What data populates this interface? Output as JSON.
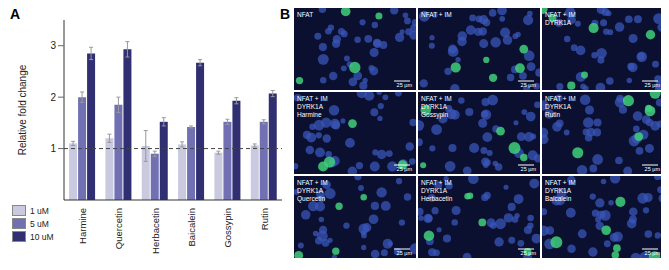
{
  "panel_labels": [
    "A",
    "B"
  ],
  "chart_data": {
    "type": "bar",
    "y_label": "Relative fold change",
    "categories": [
      "Harmine",
      "Quercetin",
      "Herbacetin",
      "Baicalein",
      "Gossypin",
      "Rutin"
    ],
    "series": [
      {
        "name": "1 uM",
        "color": "#c9c9e0",
        "values": [
          1.1,
          1.2,
          1.05,
          1.08,
          0.92,
          1.06
        ],
        "errors": [
          0.04,
          0.08,
          0.3,
          0.05,
          0.03,
          0.03
        ]
      },
      {
        "name": "5 uM",
        "color": "#7070b2",
        "values": [
          2.0,
          1.85,
          0.9,
          1.42,
          1.52,
          1.52
        ],
        "errors": [
          0.1,
          0.15,
          0.05,
          0.02,
          0.05,
          0.04
        ]
      },
      {
        "name": "10 uM",
        "color": "#2f2f72",
        "values": [
          2.85,
          2.93,
          1.52,
          2.67,
          1.93,
          2.07
        ],
        "errors": [
          0.12,
          0.15,
          0.08,
          0.06,
          0.06,
          0.06
        ]
      }
    ],
    "ylim": [
      0,
      3.5
    ],
    "yticks": [
      1,
      2,
      3
    ],
    "reference_line": 1,
    "grid": false,
    "legend": "lower left"
  },
  "images": {
    "scale_bar": "25 µm",
    "panels": [
      {
        "label": [
          "NFAT"
        ]
      },
      {
        "label": [
          "NFAT + IM"
        ]
      },
      {
        "label": [
          "NFAT + IM",
          "DYRK1A"
        ]
      },
      {
        "label": [
          "NFAT + IM",
          "DYRK1A",
          "Harmine"
        ]
      },
      {
        "label": [
          "NFAT + IM",
          "DYRK1A",
          "Gossypin"
        ]
      },
      {
        "label": [
          "NFAT + IM",
          "DYRK1A",
          "Rutin"
        ]
      },
      {
        "label": [
          "NFAT + IM",
          "DYRK1A",
          "Quercetin"
        ]
      },
      {
        "label": [
          "NFAT + IM",
          "DYRK1A",
          "Herbacetin"
        ]
      },
      {
        "label": [
          "NFAT + IM",
          "DYRK1A",
          "Baicalein"
        ]
      }
    ]
  }
}
